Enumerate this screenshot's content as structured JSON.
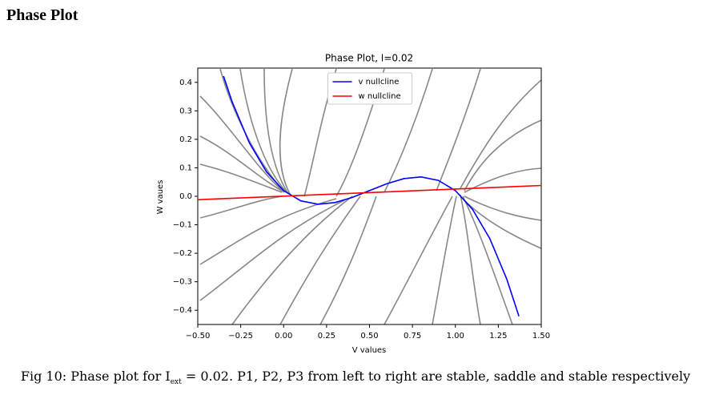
{
  "header": {
    "title": "Phase Plot"
  },
  "chart_data": {
    "type": "line",
    "title": "Phase Plot, I=0.02",
    "x_label": "V values",
    "y_label": "W vaues",
    "series": [
      {
        "name": "v nullcline",
        "color": "#0000ff",
        "x": [
          -0.35,
          -0.3,
          -0.2,
          -0.1,
          0,
          0.1,
          0.2,
          0.3,
          0.4,
          0.5,
          0.6,
          0.7,
          0.8,
          0.9,
          1.0,
          1.1,
          1.2,
          1.3,
          1.37
        ],
        "values": [
          0.422,
          0.332,
          0.188,
          0.086,
          0.02,
          -0.016,
          -0.028,
          -0.022,
          -0.004,
          0.02,
          0.044,
          0.062,
          0.068,
          0.056,
          0.02,
          -0.046,
          -0.148,
          -0.292,
          -0.421
        ]
      },
      {
        "name": "w nullcline",
        "color": "#ff0000",
        "x": [
          -0.5,
          1.5
        ],
        "values": [
          -0.012,
          0.038
        ]
      }
    ],
    "xlim": [
      -0.5,
      1.5
    ],
    "ylim": [
      -0.45,
      0.45
    ],
    "xticks": [
      {
        "value": -0.5,
        "label": "−0.50"
      },
      {
        "value": -0.25,
        "label": "−0.25"
      },
      {
        "value": 0,
        "label": "0.00"
      },
      {
        "value": 0.25,
        "label": "0.25"
      },
      {
        "value": 0.5,
        "label": "0.50"
      },
      {
        "value": 0.75,
        "label": "0.75"
      },
      {
        "value": 1,
        "label": "1.00"
      },
      {
        "value": 1.25,
        "label": "1.25"
      },
      {
        "value": 1.5,
        "label": "1.50"
      }
    ],
    "yticks": [
      0.4,
      0.3,
      0.2,
      0.1,
      {
        "value": 0,
        "label": "0.0"
      },
      {
        "value": -0.1,
        "label": "−0.1"
      },
      {
        "value": -0.2,
        "label": "−0.2"
      },
      {
        "value": -0.3,
        "label": "−0.3"
      },
      {
        "value": -0.4,
        "label": "−0.4"
      }
    ],
    "legend": "upper center"
  },
  "caption": {
    "prefix": "Fig 10: Phase plot for I",
    "subscript": "ext",
    "suffix": " = 0.02. P1, P2, P3 from left to right are stable, saddle and stable respectively"
  }
}
